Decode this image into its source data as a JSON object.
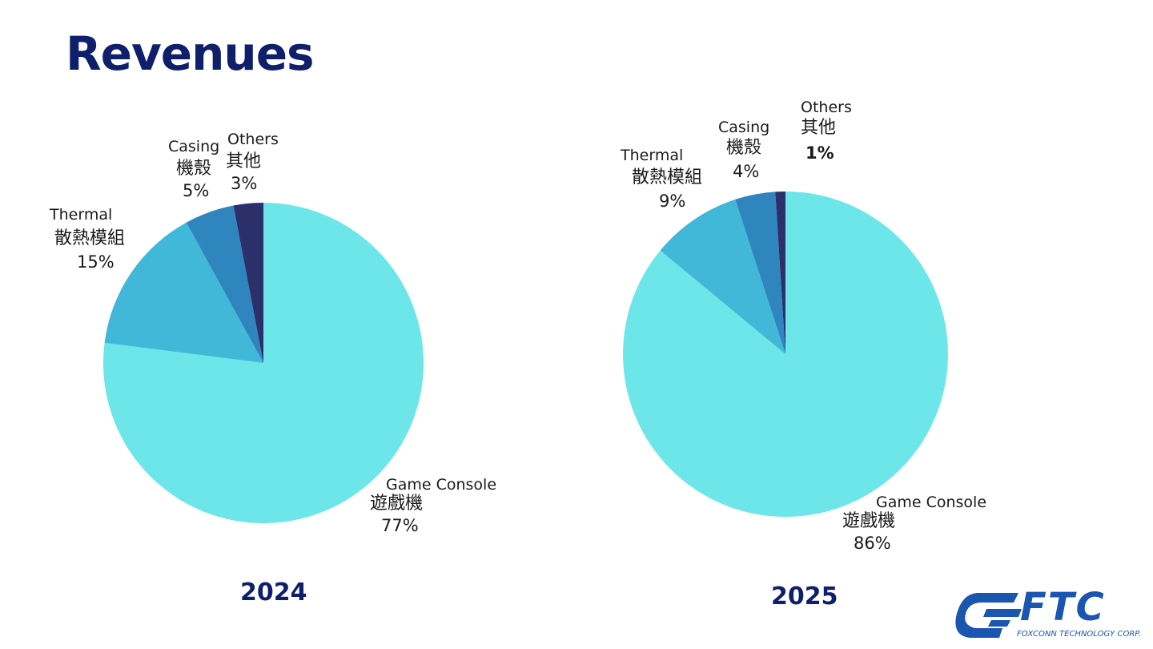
{
  "title": "Revenues",
  "colors": {
    "title": "#0f1f6b",
    "game_console": "#6ce6e8",
    "thermal": "#42b8d8",
    "casing": "#2f86bf",
    "others": "#2b2f6a",
    "logo": "#1a55b0"
  },
  "chart_data": [
    {
      "type": "pie",
      "title": "2024",
      "slices": [
        {
          "label_en": "Game Console",
          "label_zh": "遊戲機",
          "value": 77,
          "pct_label": "77%"
        },
        {
          "label_en": "Thermal",
          "label_zh": "散熱模組",
          "value": 15,
          "pct_label": "15%"
        },
        {
          "label_en": "Casing",
          "label_zh": "機殼",
          "value": 5,
          "pct_label": "5%"
        },
        {
          "label_en": "Others",
          "label_zh": "其他",
          "value": 3,
          "pct_label": "3%"
        }
      ]
    },
    {
      "type": "pie",
      "title": "2025",
      "slices": [
        {
          "label_en": "Game Console",
          "label_zh": "遊戲機",
          "value": 86,
          "pct_label": "86%"
        },
        {
          "label_en": "Thermal",
          "label_zh": "散熱模組",
          "value": 9,
          "pct_label": "9%"
        },
        {
          "label_en": "Casing",
          "label_zh": "機殼",
          "value": 4,
          "pct_label": "4%"
        },
        {
          "label_en": "Others",
          "label_zh": "其他",
          "value": 1,
          "pct_label": "1%"
        }
      ]
    }
  ],
  "logo": {
    "text": "FTC",
    "subtitle": "FOXCONN TECHNOLOGY CORP."
  }
}
